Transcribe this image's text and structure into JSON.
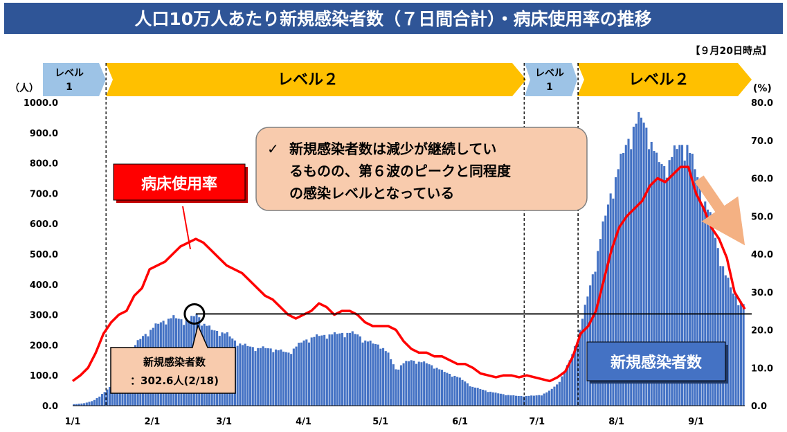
{
  "title": "人口10万人あたり新規感染者数（７日間合計）・病床使用率の推移",
  "as_of": "【９月20日時点】",
  "level_bands": [
    {
      "label_line1": "レベル",
      "label_line2": "1"
    },
    {
      "label_line1": "レベル２",
      "label_line2": ""
    },
    {
      "label_line1": "レベル",
      "label_line2": "1"
    },
    {
      "label_line1": "レベル２",
      "label_line2": ""
    }
  ],
  "left_unit": "（人）",
  "right_unit": "(%)",
  "annotation_main": {
    "check": "✓",
    "line1": "新規感染者数は減少が継続してい",
    "line2": "るものの、第６波のピークと同程度",
    "line3": "の感染レベルとなっている"
  },
  "bed_label": "病床使用率",
  "cases_label": "新規感染者数",
  "peak_box": {
    "line1": "新規感染者数",
    "line2": "：302.6人(2/18)"
  },
  "colors": {
    "title_bg": "#2f5597",
    "level1": "#9dc3e6",
    "level2": "#ffc000",
    "bars": "#4472c4",
    "line": "#ff0000",
    "callout_bg": "#f8cbad",
    "cases_box": "#4472c4",
    "arrow": "#f4b183"
  },
  "chart_data": {
    "type": "bar",
    "title": "人口10万人あたり新規感染者数（７日間合計）・病床使用率の推移",
    "x_tick_labels": [
      "1/1",
      "2/1",
      "3/1",
      "4/1",
      "5/1",
      "6/1",
      "7/1",
      "8/1",
      "9/1"
    ],
    "x_range": [
      "2022-01-01",
      "2022-09-20"
    ],
    "left_axis": {
      "min": 0,
      "max": 1000,
      "ticks": [
        "0.0",
        "100.0",
        "200.0",
        "300.0",
        "400.0",
        "500.0",
        "600.0",
        "700.0",
        "800.0",
        "900.0",
        "1000.0"
      ],
      "unit": "（人）"
    },
    "right_axis": {
      "min": 0,
      "max": 80,
      "ticks": [
        "0.0",
        "10.0",
        "20.0",
        "30.0",
        "40.0",
        "50.0",
        "60.0",
        "70.0",
        "80.0"
      ],
      "unit": "(%)"
    },
    "series": [
      {
        "name": "新規感染者数",
        "type": "bar",
        "axis": "left",
        "points": [
          [
            "2022-01-01",
            5
          ],
          [
            "2022-01-05",
            8
          ],
          [
            "2022-01-08",
            15
          ],
          [
            "2022-01-11",
            30
          ],
          [
            "2022-01-13",
            45
          ],
          [
            "2022-01-16",
            70
          ],
          [
            "2022-01-19",
            110
          ],
          [
            "2022-01-22",
            160
          ],
          [
            "2022-01-25",
            200
          ],
          [
            "2022-01-28",
            230
          ],
          [
            "2022-01-31",
            250
          ],
          [
            "2022-02-03",
            270
          ],
          [
            "2022-02-06",
            285
          ],
          [
            "2022-02-09",
            290
          ],
          [
            "2022-02-12",
            285
          ],
          [
            "2022-02-15",
            280
          ],
          [
            "2022-02-18",
            302.6
          ],
          [
            "2022-02-21",
            270
          ],
          [
            "2022-02-24",
            250
          ],
          [
            "2022-02-27",
            245
          ],
          [
            "2022-03-02",
            235
          ],
          [
            "2022-03-05",
            215
          ],
          [
            "2022-03-08",
            200
          ],
          [
            "2022-03-11",
            195
          ],
          [
            "2022-03-14",
            190
          ],
          [
            "2022-03-17",
            190
          ],
          [
            "2022-03-20",
            188
          ],
          [
            "2022-03-23",
            180
          ],
          [
            "2022-03-26",
            175
          ],
          [
            "2022-03-29",
            195
          ],
          [
            "2022-04-01",
            215
          ],
          [
            "2022-04-04",
            225
          ],
          [
            "2022-04-07",
            230
          ],
          [
            "2022-04-10",
            235
          ],
          [
            "2022-04-13",
            235
          ],
          [
            "2022-04-16",
            240
          ],
          [
            "2022-04-19",
            240
          ],
          [
            "2022-04-22",
            235
          ],
          [
            "2022-04-25",
            215
          ],
          [
            "2022-04-28",
            205
          ],
          [
            "2022-05-01",
            200
          ],
          [
            "2022-05-04",
            170
          ],
          [
            "2022-05-07",
            120
          ],
          [
            "2022-05-10",
            140
          ],
          [
            "2022-05-13",
            150
          ],
          [
            "2022-05-16",
            145
          ],
          [
            "2022-05-19",
            140
          ],
          [
            "2022-05-22",
            130
          ],
          [
            "2022-05-25",
            115
          ],
          [
            "2022-05-28",
            105
          ],
          [
            "2022-05-31",
            95
          ],
          [
            "2022-06-03",
            80
          ],
          [
            "2022-06-06",
            62
          ],
          [
            "2022-06-09",
            55
          ],
          [
            "2022-06-12",
            48
          ],
          [
            "2022-06-15",
            42
          ],
          [
            "2022-06-18",
            38
          ],
          [
            "2022-06-21",
            34
          ],
          [
            "2022-06-24",
            32
          ],
          [
            "2022-06-27",
            32
          ],
          [
            "2022-06-30",
            33
          ],
          [
            "2022-07-03",
            36
          ],
          [
            "2022-07-06",
            48
          ],
          [
            "2022-07-09",
            70
          ],
          [
            "2022-07-12",
            110
          ],
          [
            "2022-07-15",
            170
          ],
          [
            "2022-07-18",
            250
          ],
          [
            "2022-07-21",
            360
          ],
          [
            "2022-07-24",
            470
          ],
          [
            "2022-07-27",
            590
          ],
          [
            "2022-07-30",
            700
          ],
          [
            "2022-08-02",
            780
          ],
          [
            "2022-08-05",
            860
          ],
          [
            "2022-08-08",
            920
          ],
          [
            "2022-08-11",
            950
          ],
          [
            "2022-08-14",
            900
          ],
          [
            "2022-08-17",
            810
          ],
          [
            "2022-08-20",
            790
          ],
          [
            "2022-08-23",
            820
          ],
          [
            "2022-08-26",
            860
          ],
          [
            "2022-08-29",
            860
          ],
          [
            "2022-09-01",
            780
          ],
          [
            "2022-09-04",
            700
          ],
          [
            "2022-09-07",
            620
          ],
          [
            "2022-09-10",
            520
          ],
          [
            "2022-09-13",
            430
          ],
          [
            "2022-09-16",
            370
          ],
          [
            "2022-09-20",
            335
          ]
        ]
      },
      {
        "name": "病床使用率",
        "type": "line",
        "axis": "right",
        "points": [
          [
            "2022-01-01",
            6.5
          ],
          [
            "2022-01-04",
            8
          ],
          [
            "2022-01-07",
            10
          ],
          [
            "2022-01-10",
            14
          ],
          [
            "2022-01-13",
            19
          ],
          [
            "2022-01-16",
            22
          ],
          [
            "2022-01-19",
            24
          ],
          [
            "2022-01-22",
            25
          ],
          [
            "2022-01-25",
            29
          ],
          [
            "2022-01-28",
            31
          ],
          [
            "2022-01-31",
            36
          ],
          [
            "2022-02-03",
            37
          ],
          [
            "2022-02-06",
            38
          ],
          [
            "2022-02-09",
            40
          ],
          [
            "2022-02-12",
            42
          ],
          [
            "2022-02-15",
            43
          ],
          [
            "2022-02-18",
            44
          ],
          [
            "2022-02-21",
            43
          ],
          [
            "2022-02-24",
            41
          ],
          [
            "2022-02-27",
            39
          ],
          [
            "2022-03-02",
            37
          ],
          [
            "2022-03-05",
            36
          ],
          [
            "2022-03-08",
            35
          ],
          [
            "2022-03-11",
            33
          ],
          [
            "2022-03-14",
            31
          ],
          [
            "2022-03-17",
            29
          ],
          [
            "2022-03-20",
            28
          ],
          [
            "2022-03-23",
            26
          ],
          [
            "2022-03-26",
            24
          ],
          [
            "2022-03-29",
            23
          ],
          [
            "2022-04-01",
            24
          ],
          [
            "2022-04-04",
            25
          ],
          [
            "2022-04-07",
            27
          ],
          [
            "2022-04-10",
            26
          ],
          [
            "2022-04-13",
            24
          ],
          [
            "2022-04-16",
            25
          ],
          [
            "2022-04-19",
            25
          ],
          [
            "2022-04-22",
            24
          ],
          [
            "2022-04-25",
            22
          ],
          [
            "2022-04-28",
            21
          ],
          [
            "2022-05-01",
            21
          ],
          [
            "2022-05-04",
            21
          ],
          [
            "2022-05-07",
            20
          ],
          [
            "2022-05-10",
            17
          ],
          [
            "2022-05-13",
            15
          ],
          [
            "2022-05-16",
            14
          ],
          [
            "2022-05-19",
            14
          ],
          [
            "2022-05-22",
            13
          ],
          [
            "2022-05-25",
            13
          ],
          [
            "2022-05-28",
            12
          ],
          [
            "2022-05-31",
            11
          ],
          [
            "2022-06-03",
            11
          ],
          [
            "2022-06-06",
            10
          ],
          [
            "2022-06-09",
            8.5
          ],
          [
            "2022-06-12",
            8
          ],
          [
            "2022-06-15",
            7.5
          ],
          [
            "2022-06-18",
            8
          ],
          [
            "2022-06-21",
            8
          ],
          [
            "2022-06-24",
            7.5
          ],
          [
            "2022-06-27",
            8
          ],
          [
            "2022-06-30",
            7.5
          ],
          [
            "2022-07-03",
            7
          ],
          [
            "2022-07-06",
            6.5
          ],
          [
            "2022-07-09",
            7.5
          ],
          [
            "2022-07-12",
            9
          ],
          [
            "2022-07-15",
            13
          ],
          [
            "2022-07-18",
            19
          ],
          [
            "2022-07-21",
            21
          ],
          [
            "2022-07-24",
            25
          ],
          [
            "2022-07-27",
            33
          ],
          [
            "2022-07-30",
            41
          ],
          [
            "2022-08-02",
            47
          ],
          [
            "2022-08-05",
            50
          ],
          [
            "2022-08-08",
            52
          ],
          [
            "2022-08-11",
            54
          ],
          [
            "2022-08-14",
            58
          ],
          [
            "2022-08-17",
            60
          ],
          [
            "2022-08-20",
            59
          ],
          [
            "2022-08-23",
            61
          ],
          [
            "2022-08-26",
            63
          ],
          [
            "2022-08-29",
            63
          ],
          [
            "2022-09-01",
            56
          ],
          [
            "2022-09-04",
            52
          ],
          [
            "2022-09-07",
            47
          ],
          [
            "2022-09-10",
            44
          ],
          [
            "2022-09-13",
            39
          ],
          [
            "2022-09-16",
            30
          ],
          [
            "2022-09-20",
            25.5
          ]
        ]
      }
    ],
    "reference_line": {
      "axis": "left",
      "value": 302.6,
      "label": "：302.6人(2/18)"
    },
    "level_periods": [
      {
        "level": "レベル 1",
        "start": "2022-01-01",
        "end": "2022-01-14"
      },
      {
        "level": "レベル２",
        "start": "2022-01-14",
        "end": "2022-06-26"
      },
      {
        "level": "レベル 1",
        "start": "2022-06-26",
        "end": "2022-07-17"
      },
      {
        "level": "レベル２",
        "start": "2022-07-17",
        "end": "2022-09-20"
      }
    ],
    "grid": false,
    "legend": "inline labels"
  }
}
